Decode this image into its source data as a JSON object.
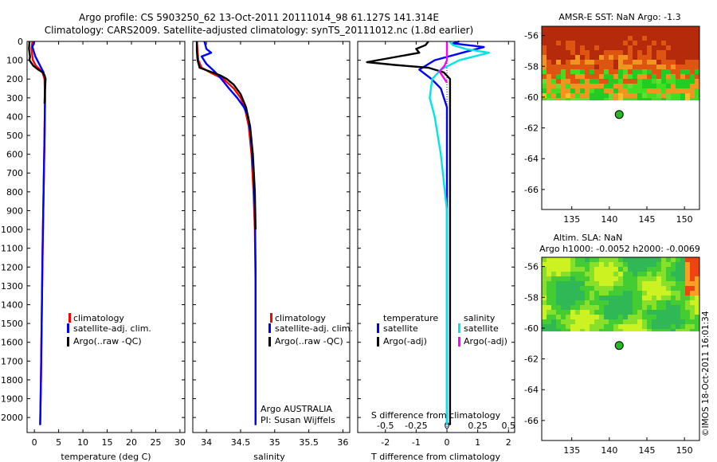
{
  "header": {
    "line1": "Argo profile: CS 5903250_62 13-Oct-2011 20111014_98 61.127S 141.314E",
    "line2": "Climatology: CARS2009. Satellite-adjusted climatology: synTS_20111012.nc (1.8d earlier)"
  },
  "colors": {
    "climatology": "#ff0000",
    "satellite": "#0000ff",
    "argo": "#000000",
    "salinity_satellite": "#00e5e5",
    "salinity_argo": "#ff00ff",
    "ocean_background": "#ffffff"
  },
  "chart_data": [
    {
      "id": "temperature",
      "type": "line",
      "xlabel": "temperature (deg C)",
      "ylabel": "",
      "xlim": [
        -1.5,
        31
      ],
      "ylim": [
        2080,
        0
      ],
      "xticks": [
        "0",
        "5",
        "10",
        "15",
        "20",
        "25",
        "30"
      ],
      "xtick_values": [
        0,
        5,
        10,
        15,
        20,
        25,
        30
      ],
      "yticks": [
        "0",
        "100",
        "200",
        "300",
        "400",
        "500",
        "600",
        "700",
        "800",
        "900",
        "1000",
        "1100",
        "1200",
        "1300",
        "1400",
        "1500",
        "1600",
        "1700",
        "1800",
        "1900",
        "2000"
      ],
      "ytick_values": [
        0,
        100,
        200,
        300,
        400,
        500,
        600,
        700,
        800,
        900,
        1000,
        1100,
        1200,
        1300,
        1400,
        1500,
        1600,
        1700,
        1800,
        1900,
        2000
      ],
      "legend": [
        "climatology",
        "satellite-adj. clim.",
        "Argo(..raw -QC)"
      ],
      "series": [
        {
          "name": "climatology",
          "color": "#ff0000",
          "x": [
            -0.4,
            -0.6,
            -0.3,
            0.3,
            1.6,
            2.1,
            2.2,
            2.1,
            1.9,
            1.7,
            1.5,
            1.35,
            1.2
          ],
          "y": [
            0,
            40,
            100,
            130,
            160,
            200,
            300,
            500,
            800,
            1100,
            1500,
            1800,
            2040
          ]
        },
        {
          "name": "satellite-adj. clim.",
          "color": "#0000ff",
          "x": [
            0.0,
            -0.4,
            0.2,
            1.0,
            1.9,
            2.2,
            2.2,
            2.1,
            1.9,
            1.7,
            1.5,
            1.35,
            1.2
          ],
          "y": [
            0,
            30,
            80,
            120,
            165,
            200,
            300,
            500,
            800,
            1100,
            1500,
            1800,
            2040
          ]
        },
        {
          "name": "Argo(..raw -QC)",
          "color": "#000000",
          "x": [
            -1.0,
            -1.1,
            -0.9,
            -1.0,
            -0.2,
            0.8,
            1.7,
            2.1,
            2.3,
            2.2,
            2.1
          ],
          "y": [
            0,
            40,
            80,
            100,
            130,
            150,
            165,
            180,
            200,
            260,
            330
          ]
        }
      ]
    },
    {
      "id": "salinity",
      "type": "line",
      "xlabel": "salinity",
      "ylabel": "",
      "xlim": [
        33.8,
        36.1
      ],
      "ylim": [
        2080,
        0
      ],
      "xticks": [
        "34",
        "34.5",
        "35",
        "35.5",
        "36"
      ],
      "xtick_values": [
        34,
        34.5,
        35,
        35.5,
        36
      ],
      "legend": [
        "climatology",
        "satellite-adj. clim.",
        "Argo(..raw -QC)"
      ],
      "annotation": [
        "Argo AUSTRALIA",
        "PI: Susan Wijffels"
      ],
      "series": [
        {
          "name": "climatology",
          "color": "#ff0000",
          "x": [
            33.86,
            33.87,
            33.88,
            33.93,
            34.08,
            34.25,
            34.4,
            34.5,
            34.56,
            34.62,
            34.66,
            34.69,
            34.71,
            34.72,
            34.72,
            34.72
          ],
          "y": [
            0,
            50,
            100,
            140,
            170,
            200,
            250,
            300,
            350,
            450,
            600,
            800,
            1000,
            1300,
            1700,
            2040
          ]
        },
        {
          "name": "satellite-adj. clim.",
          "color": "#0000ff",
          "x": [
            33.97,
            34.0,
            34.07,
            33.93,
            34.0,
            34.12,
            34.22,
            34.33,
            34.45,
            34.55,
            34.61,
            34.65,
            34.69,
            34.71,
            34.72,
            34.72,
            34.72
          ],
          "y": [
            0,
            40,
            60,
            80,
            120,
            160,
            200,
            250,
            300,
            350,
            400,
            500,
            700,
            900,
            1200,
            1600,
            2040
          ]
        },
        {
          "name": "Argo(..raw -QC)",
          "color": "#000000",
          "x": [
            33.86,
            33.86,
            33.87,
            33.9,
            34.05,
            34.2,
            34.3,
            34.4,
            34.5,
            34.58,
            34.64,
            34.68,
            34.71,
            34.72
          ],
          "y": [
            0,
            50,
            100,
            140,
            160,
            180,
            200,
            230,
            280,
            350,
            450,
            600,
            800,
            1000
          ]
        }
      ]
    },
    {
      "id": "difference",
      "type": "line",
      "xlabel": "T difference from climatology",
      "top_axis_label": "S difference from climatology",
      "xlim": [
        -2.9,
        2.2
      ],
      "ylim": [
        2080,
        0
      ],
      "xticks": [
        "-2",
        "-1",
        "0",
        "1",
        "2"
      ],
      "xtick_values": [
        -2,
        -1,
        0,
        1,
        2
      ],
      "s_ticks": [
        "-0.5",
        "-0.25",
        "0",
        "0.25",
        "0.5"
      ],
      "s_tick_values": [
        -0.5,
        -0.25,
        0,
        0.25,
        0.5
      ],
      "legend_groups": [
        {
          "title": "temperature",
          "items": [
            "satellite",
            "Argo(-adj)"
          ]
        },
        {
          "title": "salinity",
          "items": [
            "satellite",
            "Argo(-adj)"
          ]
        }
      ],
      "series": [
        {
          "name": "temperature satellite",
          "color": "#0000ff",
          "x": [
            0.4,
            0.2,
            1.2,
            0.5,
            -0.4,
            -0.9,
            -0.5,
            -0.2,
            0.0,
            0.0,
            0.0,
            0.0
          ],
          "y": [
            0,
            10,
            30,
            60,
            100,
            150,
            200,
            250,
            350,
            600,
            1200,
            2040
          ]
        },
        {
          "name": "temperature Argo(-adj)",
          "color": "#000000",
          "x": [
            -0.6,
            -0.7,
            -1.0,
            -0.9,
            -2.6,
            -1.7,
            -0.6,
            -0.1,
            0.1,
            0.1,
            0.1,
            0.1,
            0.1
          ],
          "y": [
            0,
            20,
            40,
            60,
            110,
            125,
            140,
            165,
            200,
            260,
            500,
            1000,
            2040
          ]
        },
        {
          "name": "salinity satellite",
          "color": "#00e5e5",
          "x": [
            0.02,
            0.05,
            0.15,
            0.34,
            0.1,
            -0.05,
            -0.12,
            -0.14,
            -0.1,
            -0.05,
            0.0,
            0.0,
            0.0
          ],
          "y": [
            0,
            20,
            40,
            60,
            100,
            150,
            200,
            300,
            400,
            600,
            900,
            1400,
            2040
          ]
        },
        {
          "name": "salinity Argo(-adj)",
          "color": "#ff00ff",
          "x": [
            0.0,
            0.0,
            0.0,
            -0.02,
            -0.06,
            -0.03,
            0.0
          ],
          "y": [
            0,
            60,
            100,
            130,
            160,
            190,
            220
          ]
        }
      ]
    }
  ],
  "maps": [
    {
      "id": "sst-map",
      "title_lines": [
        "AMSR-E SST: NaN Argo: -1.3"
      ],
      "x_ticks": [
        "135",
        "140",
        "145",
        "150"
      ],
      "x_tick_values": [
        135,
        140,
        145,
        150
      ],
      "y_ticks": [
        "-56",
        "-58",
        "-60",
        "-62",
        "-64",
        "-66"
      ],
      "y_tick_values": [
        -56,
        -58,
        -60,
        -62,
        -64,
        -66
      ],
      "xlim": [
        131,
        152
      ],
      "ylim": [
        -67.3,
        -55.4
      ],
      "data_south_limit": -60.2,
      "marker": {
        "lon": 141.314,
        "lat": -61.127,
        "color": "#22bb22"
      }
    },
    {
      "id": "sla-map",
      "title_lines": [
        "Altim. SLA: NaN",
        "Argo h1000: -0.0052 h2000: -0.0069"
      ],
      "x_ticks": [
        "135",
        "140",
        "145",
        "150"
      ],
      "x_tick_values": [
        135,
        140,
        145,
        150
      ],
      "y_ticks": [
        "-56",
        "-58",
        "-60",
        "-62",
        "-64",
        "-66"
      ],
      "y_tick_values": [
        -56,
        -58,
        -60,
        -62,
        -64,
        -66
      ],
      "xlim": [
        131,
        152
      ],
      "ylim": [
        -67.3,
        -55.4
      ],
      "data_south_limit": -60.2,
      "marker": {
        "lon": 141.314,
        "lat": -61.127,
        "color": "#22bb22"
      }
    }
  ],
  "footer": {
    "stamp": "©IMOS 18-Oct-2011 16:01:34"
  }
}
